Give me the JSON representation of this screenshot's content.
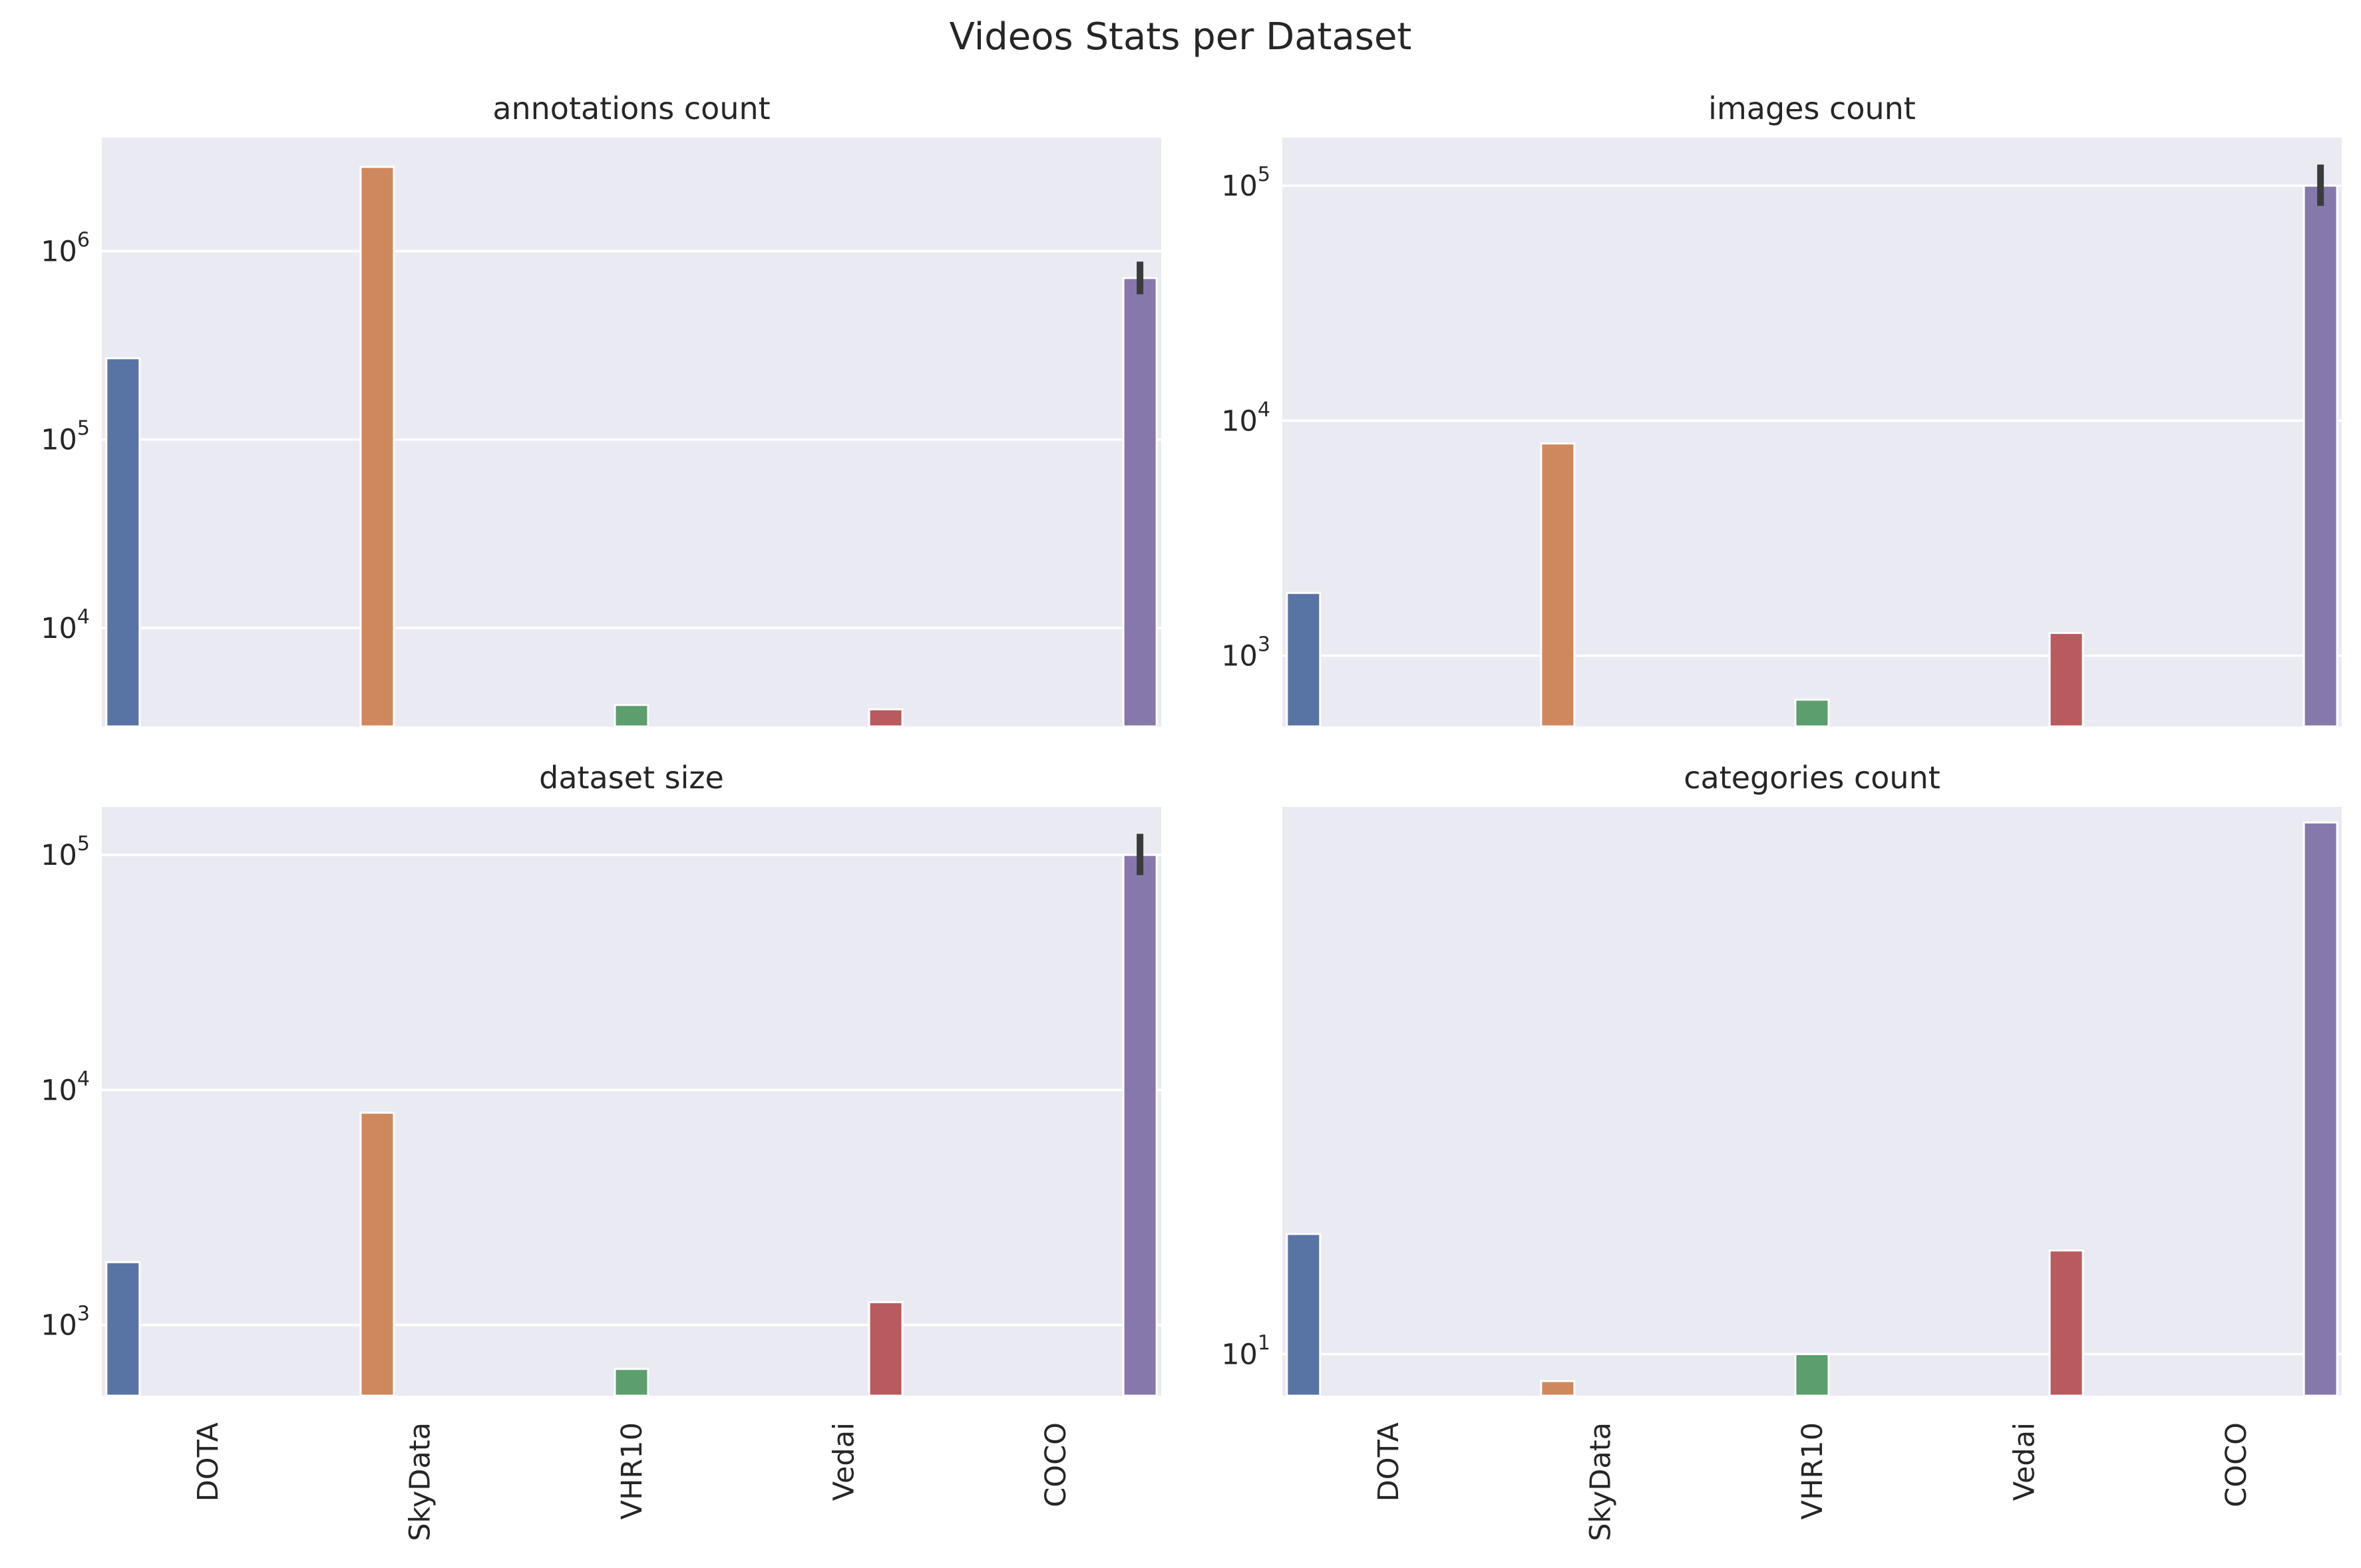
{
  "figure": {
    "suptitle": "Videos Stats per Dataset"
  },
  "palette": {
    "DOTA": "#5874a5",
    "SkyData": "#cf885d",
    "VHR10": "#5c9e6d",
    "Vedai": "#b95a5f",
    "COCO": "#8778ac",
    "plot_bg": "#eaeaf2",
    "errorbar": "#3b3b3b"
  },
  "chart_data": [
    {
      "type": "bar",
      "title": "annotations count",
      "yscale": "log",
      "categories": [
        "DOTA",
        "SkyData",
        "VHR10",
        "Vedai",
        "COCO"
      ],
      "values": [
        270000,
        2800000,
        3900,
        3700,
        720000
      ],
      "errors": [
        null,
        null,
        null,
        null,
        [
          590000,
          880000
        ]
      ],
      "ylim": [
        3000,
        4000000
      ],
      "yticks": [
        {
          "base": "10",
          "exp": "4",
          "value": 10000
        },
        {
          "base": "10",
          "exp": "5",
          "value": 100000
        },
        {
          "base": "10",
          "exp": "6",
          "value": 1000000
        }
      ],
      "show_xticklabels": false
    },
    {
      "type": "bar",
      "title": "images count",
      "yscale": "log",
      "categories": [
        "DOTA",
        "SkyData",
        "VHR10",
        "Vedai",
        "COCO"
      ],
      "values": [
        1850,
        8000,
        650,
        1250,
        100000
      ],
      "errors": [
        null,
        null,
        null,
        null,
        [
          82000,
          123000
        ]
      ],
      "ylim": [
        500,
        160000
      ],
      "yticks": [
        {
          "base": "10",
          "exp": "3",
          "value": 1000
        },
        {
          "base": "10",
          "exp": "4",
          "value": 10000
        },
        {
          "base": "10",
          "exp": "5",
          "value": 100000
        }
      ],
      "show_xticklabels": false
    },
    {
      "type": "bar",
      "title": "dataset size",
      "yscale": "log",
      "categories": [
        "DOTA",
        "SkyData",
        "VHR10",
        "Vedai",
        "COCO"
      ],
      "values": [
        1850,
        8000,
        650,
        1250,
        100000
      ],
      "errors": [
        null,
        null,
        null,
        null,
        [
          82000,
          123000
        ]
      ],
      "ylim": [
        500,
        160000
      ],
      "yticks": [
        {
          "base": "10",
          "exp": "3",
          "value": 1000
        },
        {
          "base": "10",
          "exp": "4",
          "value": 10000
        },
        {
          "base": "10",
          "exp": "5",
          "value": 100000
        }
      ],
      "show_xticklabels": true
    },
    {
      "type": "bar",
      "title": "categories count",
      "yscale": "log",
      "categories": [
        "DOTA",
        "SkyData",
        "VHR10",
        "Vedai",
        "COCO"
      ],
      "values": [
        16,
        9,
        10,
        15,
        80
      ],
      "errors": [
        null,
        null,
        null,
        null,
        null
      ],
      "ylim": [
        8.5,
        85
      ],
      "yticks": [
        {
          "base": "10",
          "exp": "1",
          "value": 10
        }
      ],
      "show_xticklabels": true
    }
  ]
}
